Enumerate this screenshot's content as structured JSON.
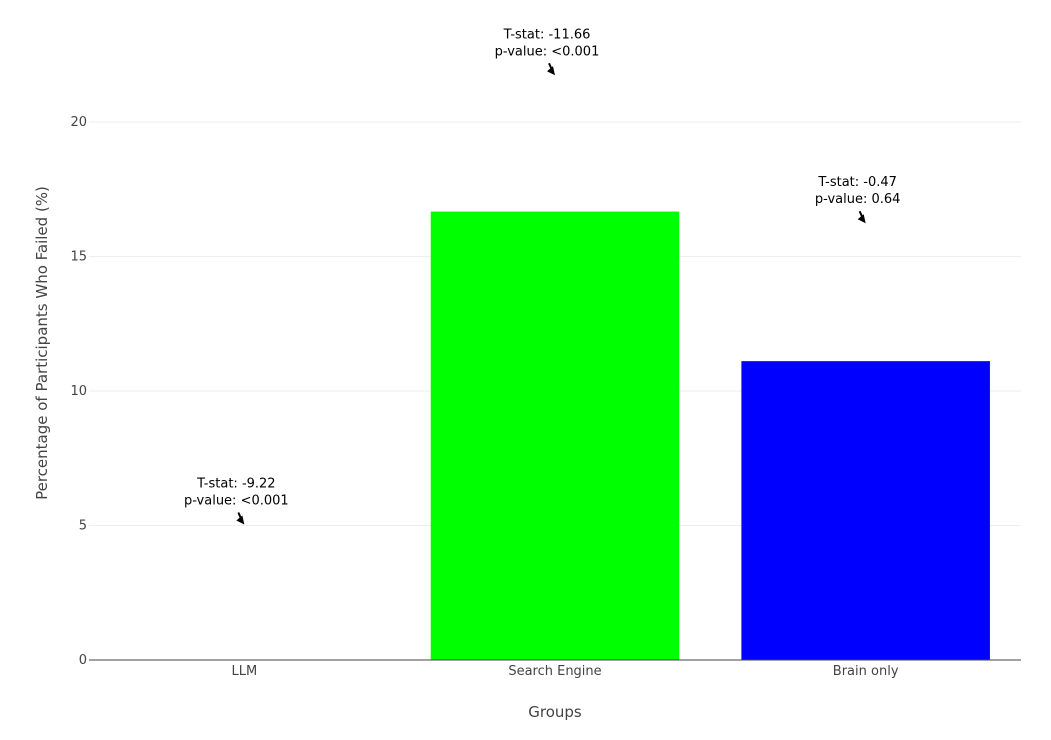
{
  "chart_data": {
    "type": "bar",
    "categories": [
      "LLM",
      "Search Engine",
      "Brain only"
    ],
    "values": [
      0,
      16.67,
      11.11
    ],
    "colors": [
      "#000000",
      "#00ff00",
      "#0000ff"
    ],
    "xlabel": "Groups",
    "ylabel": "Percentage of Participants Who Failed (%)",
    "ylim": [
      0,
      20
    ],
    "yticks": [
      0,
      5,
      10,
      15,
      20
    ],
    "grid": true,
    "annotations": [
      {
        "category": "LLM",
        "y": 5,
        "lines": [
          "T-stat: -9.22",
          "p-value: <0.001"
        ]
      },
      {
        "category": "Search Engine",
        "y": 21.7,
        "lines": [
          "T-stat: -11.66",
          "p-value: <0.001"
        ]
      },
      {
        "category": "Brain only",
        "y": 16.2,
        "lines": [
          "T-stat: -0.47",
          "p-value: 0.64"
        ]
      }
    ]
  }
}
